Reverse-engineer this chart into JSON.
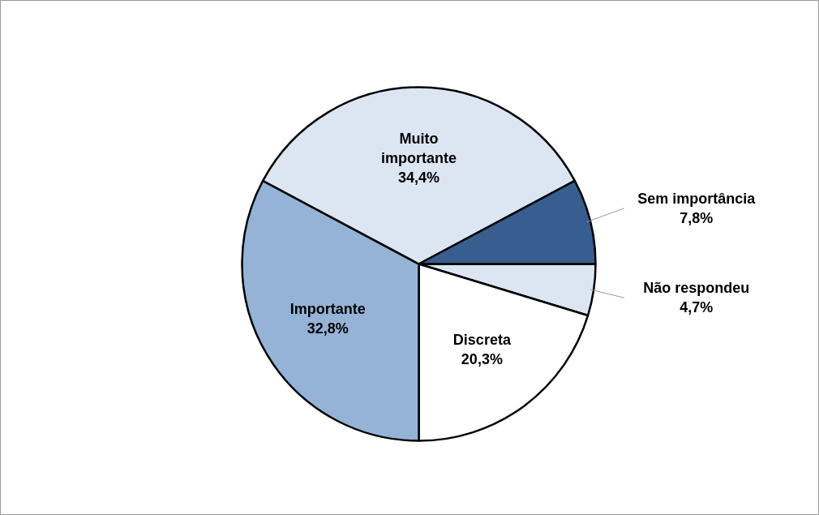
{
  "chart_data": {
    "type": "pie",
    "categories": [
      "Não respondeu",
      "Discreta",
      "Importante",
      "Muito importante",
      "Sem importância"
    ],
    "values": [
      4.7,
      20.3,
      32.8,
      34.4,
      7.8
    ],
    "value_labels": [
      "4,7%",
      "20,3%",
      "32,8%",
      "34,4%",
      "7,8%"
    ],
    "colors": [
      "#dce6f2",
      "#ffffff",
      "#95b3d7",
      "#dce6f2",
      "#375e8f"
    ]
  }
}
